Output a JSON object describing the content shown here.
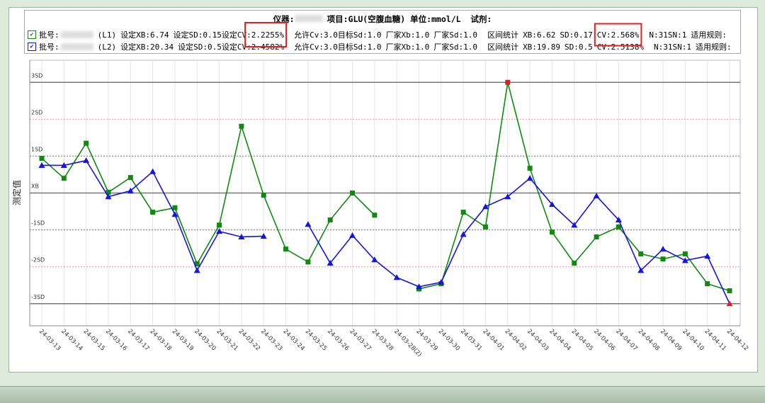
{
  "chart_data": {
    "type": "line",
    "header": {
      "title_left": "仪器:",
      "title_right": "项目:GLU(空腹血糖) 单位:mmol/L  试剂:",
      "lot_label": "批号:"
    },
    "ylabel": "测定值",
    "categories": [
      "24-03-13",
      "24-03-14",
      "24-03-15",
      "24-03-16",
      "24-03-17",
      "24-03-18",
      "24-03-19",
      "24-03-20",
      "24-03-21",
      "24-03-22",
      "24-03-23",
      "24-03-24",
      "24-03-25",
      "24-03-26",
      "24-03-27",
      "24-03-28",
      "24-03-28(2)",
      "24-03-29",
      "24-03-30",
      "24-03-31",
      "24-04-01",
      "24-04-02",
      "24-04-03",
      "24-04-04",
      "24-04-05",
      "24-04-06",
      "24-04-07",
      "24-04-08",
      "24-04-09",
      "24-04-10",
      "24-04-11",
      "24-04-12"
    ],
    "ylim": [
      -3.6,
      3.6
    ],
    "yticks": [
      {
        "value": 3,
        "label": "3SD"
      },
      {
        "value": 2,
        "label": "2SD"
      },
      {
        "value": 1,
        "label": "1SD"
      },
      {
        "value": 0,
        "label": "XB"
      },
      {
        "value": -1,
        "label": "-1SD"
      },
      {
        "value": -2,
        "label": "-2SD"
      },
      {
        "value": -3,
        "label": "-3SD"
      }
    ],
    "series": [
      {
        "name": "(L1)",
        "color": "#118811",
        "marker": "square",
        "info": [
          "设定XB:6.74",
          "设定SD:0.15设定CV:2.2255%",
          "允许Cv:3.0目标Sd:1.0",
          "厂家Xb:1.0",
          "厂家Sd:1.0",
          "区间统计",
          "XB:6.62",
          "SD:0.17",
          "CV:2.568%",
          "N:31SN:1",
          "适用规则:"
        ],
        "values": [
          0.94,
          0.4,
          1.35,
          0.02,
          0.42,
          -0.52,
          -0.4,
          -1.92,
          -0.87,
          1.81,
          -0.06,
          -1.52,
          -1.87,
          -0.73,
          0,
          -0.6,
          null,
          -2.6,
          -2.46,
          -0.52,
          -0.92,
          3,
          0.67,
          -1.06,
          -1.9,
          -1.19,
          -0.92,
          -1.65,
          -1.79,
          -1.65,
          -2.46,
          -2.65
        ]
      },
      {
        "name": "(L2)",
        "color": "#1515dd",
        "marker": "triangle",
        "info": [
          "设定XB:20.34",
          "设定SD:0.5设定CV:2.4582%",
          "允许Cv:3.0目标Sd:1.0",
          "厂家Xb:1.0",
          "厂家Sd:1.0",
          "区间统计",
          "XB:19.89",
          "SD:0.5",
          "CV:2.5138%",
          "N:31SN:1",
          "适用规则:"
        ],
        "values": [
          0.75,
          0.75,
          0.88,
          -0.1,
          0.06,
          0.58,
          -0.58,
          -2.1,
          -1.04,
          -1.19,
          -1.17,
          null,
          -0.85,
          -1.9,
          -1.15,
          -1.81,
          -2.29,
          -2.54,
          -2.42,
          -1.12,
          -0.37,
          -0.1,
          0.4,
          -0.31,
          -0.87,
          -0.08,
          -0.73,
          -2.1,
          -1.52,
          -1.83,
          -1.71,
          -3
        ]
      }
    ]
  }
}
